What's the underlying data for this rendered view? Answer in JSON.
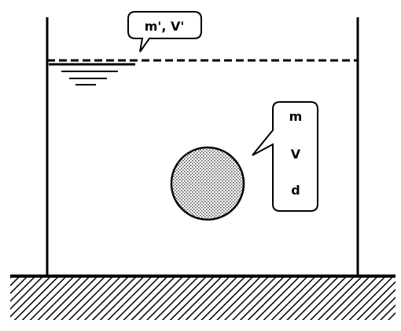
{
  "diagram": {
    "fluid_callout": "m', V'",
    "object_labels": [
      "m",
      "V",
      "d"
    ]
  },
  "colors": {
    "stroke": "#000000",
    "background": "#ffffff",
    "sphere_fill": "#cfcfcf"
  }
}
